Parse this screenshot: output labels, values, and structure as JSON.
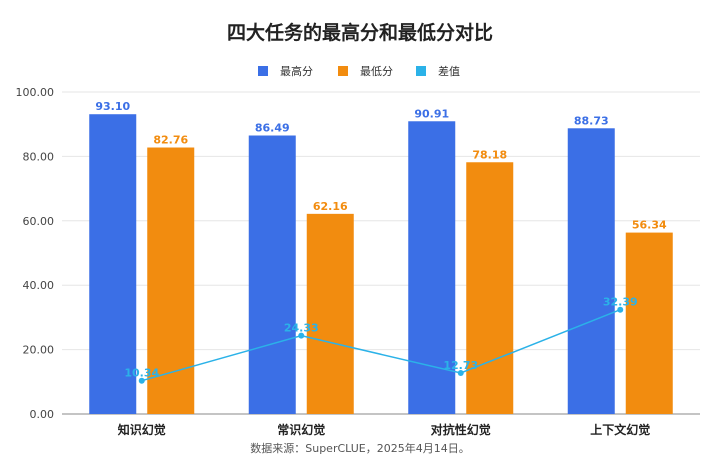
{
  "chart_data": {
    "type": "bar",
    "title": "四大任务的最高分和最低分对比",
    "categories": [
      "知识幻觉",
      "常识幻觉",
      "对抗性幻觉",
      "上下文幻觉"
    ],
    "series": [
      {
        "name": "最高分",
        "kind": "bar",
        "color": "#3b6fe6",
        "values": [
          93.1,
          86.49,
          90.91,
          88.73
        ],
        "labels": [
          "93.10",
          "86.49",
          "90.91",
          "88.73"
        ]
      },
      {
        "name": "最低分",
        "kind": "bar",
        "color": "#f28c0f",
        "values": [
          82.76,
          62.16,
          78.18,
          56.34
        ],
        "labels": [
          "82.76",
          "62.16",
          "78.18",
          "56.34"
        ]
      },
      {
        "name": "差值",
        "kind": "line",
        "color": "#2bb2e8",
        "values": [
          10.34,
          24.33,
          12.73,
          32.39
        ],
        "labels": [
          "10.34",
          "24.33",
          "12.73",
          "32.39"
        ]
      }
    ],
    "ylim": [
      0,
      100
    ],
    "yticks": [
      "0.00",
      "20.00",
      "40.00",
      "60.00",
      "80.00",
      "100.00"
    ],
    "ytick_values": [
      0,
      20,
      40,
      60,
      80,
      100
    ],
    "grid": true,
    "legend_position": "top",
    "source": "数据来源：SuperCLUE，2025年4月14日。"
  }
}
